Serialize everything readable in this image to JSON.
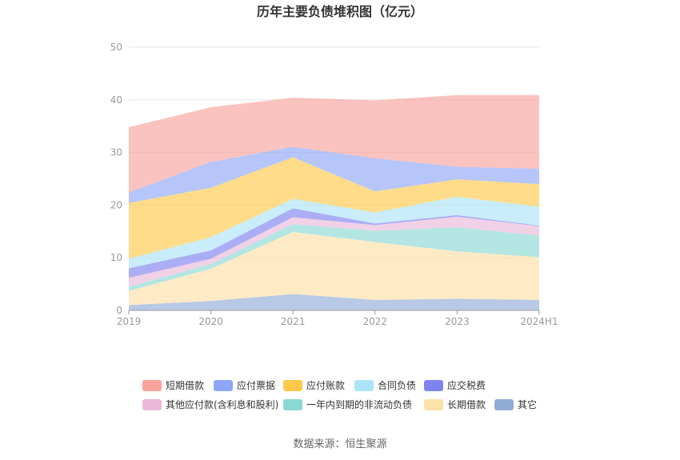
{
  "title": "历年主要负债堆积图（亿元）",
  "source": "数据来源：恒生聚源",
  "colors": {
    "其它": "#92acd9",
    "长期借款": "#fde1a8",
    "一年内到期的非流动负债": "#8ad8d4",
    "其他应付款(含利息和股利)": "#eab8d8",
    "应交税费": "#7f83ef",
    "合同负债": "#ace3f8",
    "应付账款": "#fec94a",
    "应付票据": "#8fa6f8",
    "短期借款": "#f9a39c"
  },
  "chart_data": {
    "type": "area",
    "stacked": true,
    "categories": [
      "2019",
      "2020",
      "2021",
      "2022",
      "2023",
      "2024H1"
    ],
    "ylim": [
      0,
      50
    ],
    "yticks": [
      0,
      10,
      20,
      30,
      40,
      50
    ],
    "grid": true,
    "legend_position": "bottom",
    "series": [
      {
        "name": "其它",
        "values": [
          1.0,
          1.8,
          3.1,
          2.0,
          2.2,
          2.0
        ]
      },
      {
        "name": "长期借款",
        "values": [
          2.7,
          6.1,
          11.8,
          11.0,
          9.0,
          8.1
        ]
      },
      {
        "name": "一年内到期的非流动负债",
        "values": [
          0.8,
          0.9,
          1.5,
          2.1,
          4.6,
          4.1
        ]
      },
      {
        "name": "其他应付款(含利息和股利)",
        "values": [
          1.7,
          1.0,
          1.3,
          1.1,
          2.0,
          1.8
        ]
      },
      {
        "name": "应交税费",
        "values": [
          1.8,
          1.6,
          1.7,
          0.3,
          0.3,
          0.1
        ]
      },
      {
        "name": "合同负债",
        "values": [
          1.8,
          2.5,
          1.8,
          2.1,
          3.5,
          3.6
        ]
      },
      {
        "name": "应付账款",
        "values": [
          10.6,
          9.4,
          7.9,
          4.0,
          3.3,
          4.3
        ]
      },
      {
        "name": "应付票据",
        "values": [
          2.0,
          4.9,
          2.0,
          6.3,
          2.4,
          2.9
        ]
      },
      {
        "name": "短期借款",
        "values": [
          12.4,
          10.4,
          9.3,
          11.0,
          13.6,
          14.0
        ]
      }
    ]
  }
}
